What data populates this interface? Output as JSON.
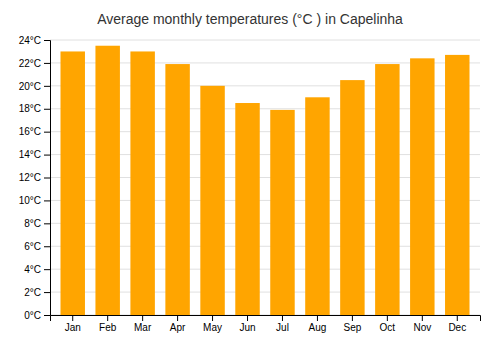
{
  "chart_data": {
    "type": "bar",
    "title": "Average monthly temperatures (°C ) in Capelinha",
    "categories": [
      "Jan",
      "Feb",
      "Mar",
      "Apr",
      "May",
      "Jun",
      "Jul",
      "Aug",
      "Sep",
      "Oct",
      "Nov",
      "Dec"
    ],
    "values": [
      23.0,
      23.5,
      23.0,
      21.9,
      20.0,
      18.5,
      17.9,
      19.0,
      20.5,
      21.9,
      22.4,
      22.7
    ],
    "color": "#FFA500",
    "ylim": [
      0,
      24
    ],
    "yticks": [
      {
        "value": 0,
        "label": "0°C"
      },
      {
        "value": 2,
        "label": "2°C"
      },
      {
        "value": 4,
        "label": "4°C"
      },
      {
        "value": 6,
        "label": "6°C"
      },
      {
        "value": 8,
        "label": "8°C"
      },
      {
        "value": 10,
        "label": "10°C"
      },
      {
        "value": 12,
        "label": "12°C"
      },
      {
        "value": 14,
        "label": "14°C"
      },
      {
        "value": 16,
        "label": "16°C"
      },
      {
        "value": 18,
        "label": "18°C"
      },
      {
        "value": 20,
        "label": "20°C"
      },
      {
        "value": 22,
        "label": "22°C"
      },
      {
        "value": 24,
        "label": "24°C"
      }
    ],
    "grid": true
  }
}
